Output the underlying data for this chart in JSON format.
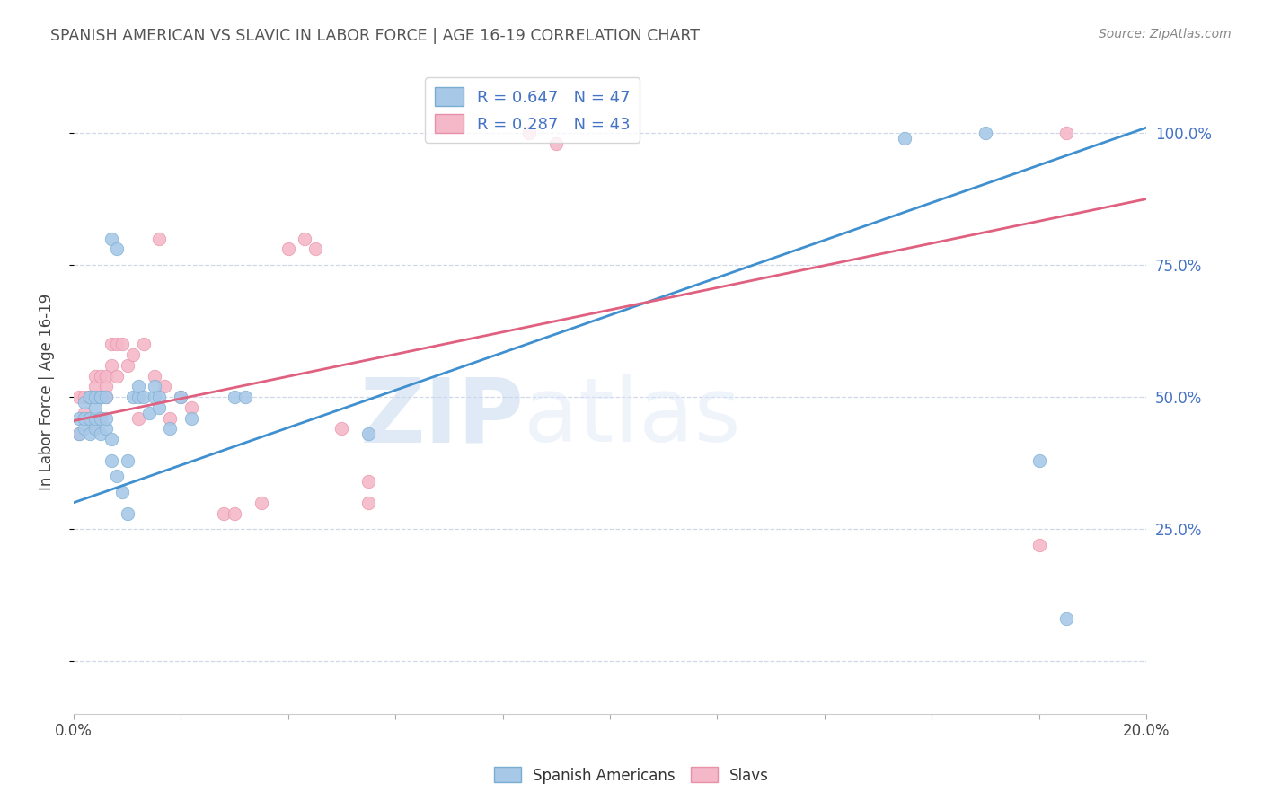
{
  "title": "SPANISH AMERICAN VS SLAVIC IN LABOR FORCE | AGE 16-19 CORRELATION CHART",
  "source": "Source: ZipAtlas.com",
  "ylabel": "In Labor Force | Age 16-19",
  "right_yticks": [
    0.0,
    0.25,
    0.5,
    0.75,
    1.0
  ],
  "right_yticklabels": [
    "",
    "25.0%",
    "50.0%",
    "75.0%",
    "100.0%"
  ],
  "xlim": [
    0.0,
    0.2
  ],
  "ylim": [
    -0.1,
    1.12
  ],
  "blue_R": 0.647,
  "blue_N": 47,
  "pink_R": 0.287,
  "pink_N": 43,
  "blue_color": "#a8c8e8",
  "pink_color": "#f4b8c8",
  "blue_edge_color": "#7aaed0",
  "pink_edge_color": "#e890a8",
  "blue_line_color": "#4090d0",
  "pink_line_color": "#e06080",
  "blue_scatter_x": [
    0.001,
    0.001,
    0.002,
    0.002,
    0.002,
    0.003,
    0.003,
    0.003,
    0.003,
    0.004,
    0.004,
    0.004,
    0.004,
    0.005,
    0.005,
    0.005,
    0.005,
    0.006,
    0.006,
    0.006,
    0.007,
    0.007,
    0.007,
    0.008,
    0.008,
    0.009,
    0.01,
    0.01,
    0.011,
    0.012,
    0.012,
    0.013,
    0.014,
    0.015,
    0.015,
    0.016,
    0.016,
    0.018,
    0.02,
    0.022,
    0.03,
    0.032,
    0.055,
    0.155,
    0.17,
    0.18,
    0.185
  ],
  "blue_scatter_y": [
    0.43,
    0.46,
    0.44,
    0.46,
    0.49,
    0.43,
    0.46,
    0.5,
    0.5,
    0.44,
    0.46,
    0.48,
    0.5,
    0.43,
    0.46,
    0.5,
    0.5,
    0.44,
    0.46,
    0.5,
    0.38,
    0.42,
    0.8,
    0.35,
    0.78,
    0.32,
    0.28,
    0.38,
    0.5,
    0.5,
    0.52,
    0.5,
    0.47,
    0.5,
    0.52,
    0.5,
    0.48,
    0.44,
    0.5,
    0.46,
    0.5,
    0.5,
    0.43,
    0.99,
    1.0,
    0.38,
    0.08
  ],
  "pink_scatter_x": [
    0.001,
    0.001,
    0.002,
    0.002,
    0.003,
    0.003,
    0.004,
    0.004,
    0.004,
    0.004,
    0.005,
    0.005,
    0.006,
    0.006,
    0.006,
    0.007,
    0.007,
    0.008,
    0.008,
    0.009,
    0.01,
    0.011,
    0.012,
    0.013,
    0.015,
    0.016,
    0.017,
    0.018,
    0.02,
    0.022,
    0.028,
    0.03,
    0.035,
    0.04,
    0.043,
    0.045,
    0.05,
    0.055,
    0.055,
    0.085,
    0.09,
    0.18,
    0.185
  ],
  "pink_scatter_y": [
    0.43,
    0.5,
    0.47,
    0.5,
    0.46,
    0.5,
    0.44,
    0.5,
    0.52,
    0.54,
    0.46,
    0.54,
    0.5,
    0.52,
    0.54,
    0.56,
    0.6,
    0.6,
    0.54,
    0.6,
    0.56,
    0.58,
    0.46,
    0.6,
    0.54,
    0.8,
    0.52,
    0.46,
    0.5,
    0.48,
    0.28,
    0.28,
    0.3,
    0.78,
    0.8,
    0.78,
    0.44,
    0.3,
    0.34,
    1.0,
    0.98,
    0.22,
    1.0
  ],
  "blue_line_x": [
    0.0,
    0.2
  ],
  "blue_line_y": [
    0.3,
    1.01
  ],
  "pink_line_x": [
    0.0,
    0.2
  ],
  "pink_line_y": [
    0.455,
    0.875
  ],
  "legend_label_blue": "R = 0.647   N = 47",
  "legend_label_pink": "R = 0.287   N = 43",
  "watermark_zip": "ZIP",
  "watermark_atlas": "atlas",
  "background_color": "#ffffff",
  "grid_color": "#d0d8e8",
  "title_color": "#555555",
  "tick_label_color_x": "#444444",
  "tick_label_color_y": "#4472c4",
  "legend_label_color": "#4472c4",
  "bottom_legend_color": "#333333"
}
